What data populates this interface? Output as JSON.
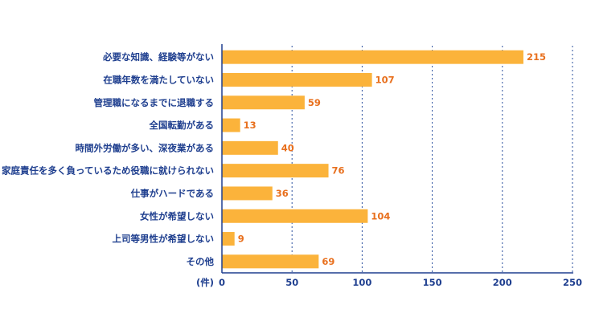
{
  "chart_data": {
    "type": "bar",
    "orientation": "horizontal",
    "categories": [
      "必要な知識、経験等がない",
      "在職年数を満たしていない",
      "管理職になるまでに退職する",
      "全国転勤がある",
      "時間外労働が多い、深夜業がある",
      "家庭責任を多く負っているため役職に就けられない",
      "仕事がハードである",
      "女性が希望しない",
      "上司等男性が希望しない",
      "その他"
    ],
    "values": [
      215,
      107,
      59,
      13,
      40,
      76,
      36,
      104,
      9,
      69
    ],
    "unit_label": "(件)",
    "xlim": [
      0,
      250
    ],
    "x_ticks": [
      0,
      50,
      100,
      150,
      200,
      250
    ],
    "grid": "vertical dotted",
    "bar_color": "#fbb33b",
    "label_color": "#1f3f8f",
    "value_color": "#e8701e"
  }
}
